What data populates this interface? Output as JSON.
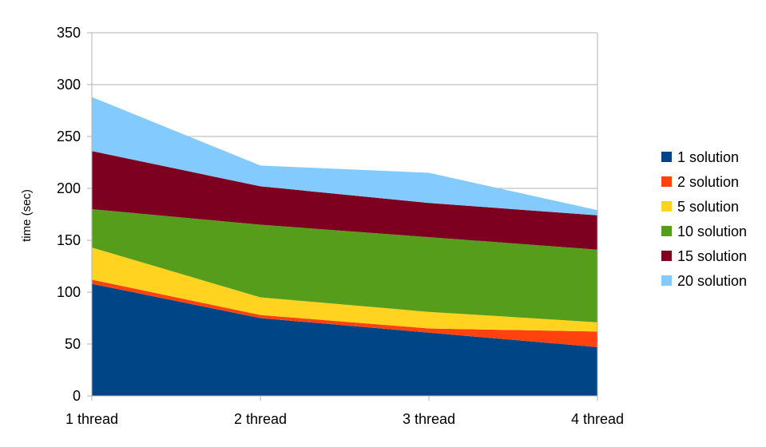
{
  "chart_data": {
    "type": "area",
    "stacked": true,
    "categories": [
      "1 thread",
      "2 thread",
      "3 thread",
      "4 thread"
    ],
    "series": [
      {
        "name": "1 solution",
        "color": "#004586",
        "values": [
          108,
          75,
          61,
          47
        ]
      },
      {
        "name": "2 solution",
        "color": "#ff420e",
        "values": [
          4,
          3,
          4,
          15
        ]
      },
      {
        "name": "5 solution",
        "color": "#ffd320",
        "values": [
          31,
          17,
          16,
          9
        ]
      },
      {
        "name": "10 solution",
        "color": "#579d1c",
        "values": [
          37,
          70,
          72,
          70
        ]
      },
      {
        "name": "15 solution",
        "color": "#7e0021",
        "values": [
          56,
          37,
          33,
          33
        ]
      },
      {
        "name": "20 solution",
        "color": "#83caff",
        "values": [
          52,
          20,
          29,
          5
        ]
      }
    ],
    "ylabel": "time (sec)",
    "xlabel": "",
    "title": "",
    "ylim": [
      0,
      350
    ],
    "yticks": [
      "0",
      "50",
      "100",
      "150",
      "200",
      "250",
      "300",
      "350"
    ],
    "grid": "horizontal",
    "legend_position": "right"
  }
}
